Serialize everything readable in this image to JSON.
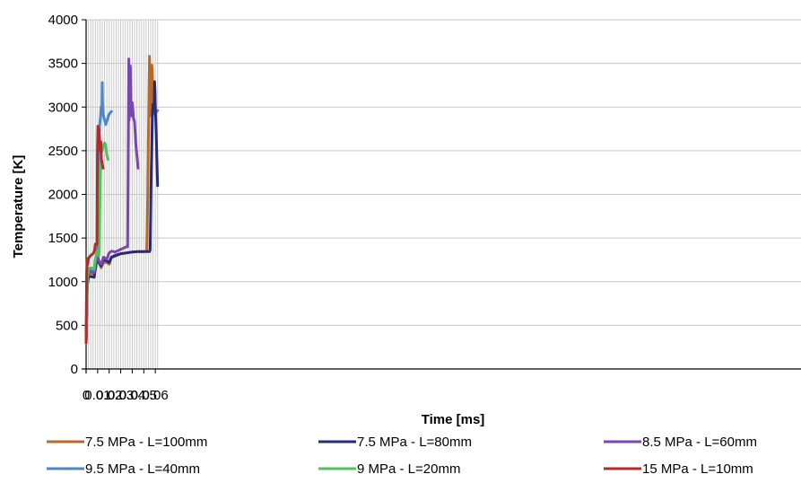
{
  "chart_data": {
    "type": "line",
    "title": "",
    "xlabel": "Time [ms]",
    "ylabel": "Temperature [K]",
    "xlim": [
      0,
      0.062
    ],
    "ylim": [
      0,
      4000
    ],
    "x_ticks": [
      0,
      0.01,
      0.02,
      0.03,
      0.04,
      0.05,
      0.06
    ],
    "x_tick_labels": [
      "0",
      "0.01",
      "0.02",
      "0.03",
      "0.04",
      "0.05",
      "0.06"
    ],
    "y_ticks": [
      0,
      500,
      1000,
      1500,
      2000,
      2500,
      3000,
      3500,
      4000
    ],
    "y_tick_labels": [
      "0",
      "500",
      "1000",
      "1500",
      "2000",
      "2500",
      "3000",
      "3500",
      "4000"
    ],
    "grid": true,
    "legend_position": "bottom",
    "series": [
      {
        "name": "7.5 MPa - L=100mm",
        "color": "#b8692c",
        "points": [
          [
            0,
            300
          ],
          [
            0.001,
            1000
          ],
          [
            0.002,
            1080
          ],
          [
            0.004,
            1100
          ],
          [
            0.007,
            1080
          ],
          [
            0.0085,
            1230
          ],
          [
            0.009,
            1290
          ],
          [
            0.0095,
            1300
          ],
          [
            0.011,
            1230
          ],
          [
            0.013,
            1160
          ],
          [
            0.015,
            1220
          ],
          [
            0.018,
            1220
          ],
          [
            0.02,
            1200
          ],
          [
            0.022,
            1280
          ],
          [
            0.025,
            1290
          ],
          [
            0.03,
            1320
          ],
          [
            0.035,
            1330
          ],
          [
            0.04,
            1340
          ],
          [
            0.045,
            1345
          ],
          [
            0.05,
            1345
          ],
          [
            0.0525,
            1350
          ],
          [
            0.0535,
            2000
          ],
          [
            0.054,
            2600
          ],
          [
            0.0545,
            3200
          ],
          [
            0.055,
            3580
          ],
          [
            0.0555,
            2900
          ],
          [
            0.056,
            2950
          ],
          [
            0.0565,
            3100
          ],
          [
            0.057,
            3480
          ],
          [
            0.0575,
            3400
          ],
          [
            0.058,
            3100
          ],
          [
            0.059,
            2920
          ],
          [
            0.06,
            2930
          ],
          [
            0.062,
            2960
          ]
        ]
      },
      {
        "name": "7.5 MPa - L=80mm",
        "color": "#252b78",
        "points": [
          [
            0,
            300
          ],
          [
            0.001,
            950
          ],
          [
            0.002,
            1050
          ],
          [
            0.004,
            1060
          ],
          [
            0.007,
            1050
          ],
          [
            0.0085,
            1180
          ],
          [
            0.009,
            1270
          ],
          [
            0.0095,
            1300
          ],
          [
            0.011,
            1220
          ],
          [
            0.013,
            1180
          ],
          [
            0.015,
            1250
          ],
          [
            0.018,
            1240
          ],
          [
            0.02,
            1220
          ],
          [
            0.022,
            1280
          ],
          [
            0.025,
            1300
          ],
          [
            0.03,
            1320
          ],
          [
            0.035,
            1330
          ],
          [
            0.04,
            1340
          ],
          [
            0.045,
            1345
          ],
          [
            0.05,
            1345
          ],
          [
            0.055,
            1345
          ],
          [
            0.0555,
            1360
          ],
          [
            0.0565,
            2300
          ],
          [
            0.0575,
            2900
          ],
          [
            0.058,
            3030
          ],
          [
            0.059,
            3000
          ],
          [
            0.0593,
            3290
          ],
          [
            0.0597,
            3200
          ],
          [
            0.06,
            3000
          ],
          [
            0.061,
            2600
          ],
          [
            0.062,
            2100
          ]
        ]
      },
      {
        "name": "8.5 MPa - L=60mm",
        "color": "#7a46b0",
        "points": [
          [
            0,
            300
          ],
          [
            0.001,
            1000
          ],
          [
            0.002,
            1100
          ],
          [
            0.004,
            1120
          ],
          [
            0.007,
            1100
          ],
          [
            0.0085,
            1250
          ],
          [
            0.009,
            1310
          ],
          [
            0.0095,
            1320
          ],
          [
            0.011,
            1240
          ],
          [
            0.013,
            1200
          ],
          [
            0.015,
            1280
          ],
          [
            0.018,
            1260
          ],
          [
            0.02,
            1330
          ],
          [
            0.022,
            1350
          ],
          [
            0.025,
            1340
          ],
          [
            0.03,
            1370
          ],
          [
            0.035,
            1400
          ],
          [
            0.036,
            1400
          ],
          [
            0.0365,
            2500
          ],
          [
            0.037,
            3550
          ],
          [
            0.0373,
            2850
          ],
          [
            0.0378,
            3200
          ],
          [
            0.0383,
            3470
          ],
          [
            0.0388,
            3100
          ],
          [
            0.039,
            3020
          ],
          [
            0.0395,
            2900
          ],
          [
            0.04,
            3050
          ],
          [
            0.041,
            2880
          ],
          [
            0.042,
            2830
          ],
          [
            0.043,
            2600
          ],
          [
            0.044,
            2450
          ],
          [
            0.045,
            2300
          ]
        ]
      },
      {
        "name": "9.5 MPa - L=40mm",
        "color": "#4a86cc",
        "points": [
          [
            0,
            300
          ],
          [
            0.001,
            1050
          ],
          [
            0.002,
            1130
          ],
          [
            0.004,
            1150
          ],
          [
            0.007,
            1130
          ],
          [
            0.008,
            1250
          ],
          [
            0.009,
            1320
          ],
          [
            0.0095,
            1340
          ],
          [
            0.0102,
            1400
          ],
          [
            0.0108,
            2100
          ],
          [
            0.0112,
            2600
          ],
          [
            0.0118,
            2800
          ],
          [
            0.0125,
            2900
          ],
          [
            0.013,
            3000
          ],
          [
            0.0138,
            2990
          ],
          [
            0.014,
            3280
          ],
          [
            0.0142,
            3050
          ],
          [
            0.0148,
            2920
          ],
          [
            0.016,
            2850
          ],
          [
            0.017,
            2800
          ],
          [
            0.0185,
            2860
          ],
          [
            0.02,
            2920
          ],
          [
            0.022,
            2950
          ]
        ]
      },
      {
        "name": "9 MPa - L=20mm",
        "color": "#52c15a",
        "points": [
          [
            0,
            300
          ],
          [
            0.001,
            1050
          ],
          [
            0.002,
            1150
          ],
          [
            0.004,
            1160
          ],
          [
            0.007,
            1150
          ],
          [
            0.008,
            1250
          ],
          [
            0.009,
            1340
          ],
          [
            0.01,
            1360
          ],
          [
            0.011,
            1300
          ],
          [
            0.0115,
            1350
          ],
          [
            0.0122,
            2200
          ],
          [
            0.0128,
            2500
          ],
          [
            0.0133,
            2520
          ],
          [
            0.0138,
            2490
          ],
          [
            0.015,
            2560
          ],
          [
            0.016,
            2590
          ],
          [
            0.017,
            2560
          ],
          [
            0.018,
            2450
          ],
          [
            0.0188,
            2400
          ]
        ]
      },
      {
        "name": "15 MPa - L=10mm",
        "color": "#b5282c",
        "points": [
          [
            0,
            300
          ],
          [
            0.0005,
            1100
          ],
          [
            0.001,
            1260
          ],
          [
            0.0015,
            1200
          ],
          [
            0.002,
            1270
          ],
          [
            0.004,
            1300
          ],
          [
            0.006,
            1320
          ],
          [
            0.0075,
            1360
          ],
          [
            0.008,
            1430
          ],
          [
            0.009,
            1440
          ],
          [
            0.0095,
            1430
          ],
          [
            0.0098,
            2500
          ],
          [
            0.0102,
            2780
          ],
          [
            0.0105,
            2760
          ],
          [
            0.011,
            2750
          ],
          [
            0.0115,
            2680
          ],
          [
            0.0122,
            2500
          ],
          [
            0.0128,
            2600
          ],
          [
            0.0133,
            2400
          ],
          [
            0.014,
            2350
          ],
          [
            0.0147,
            2300
          ]
        ]
      }
    ]
  }
}
